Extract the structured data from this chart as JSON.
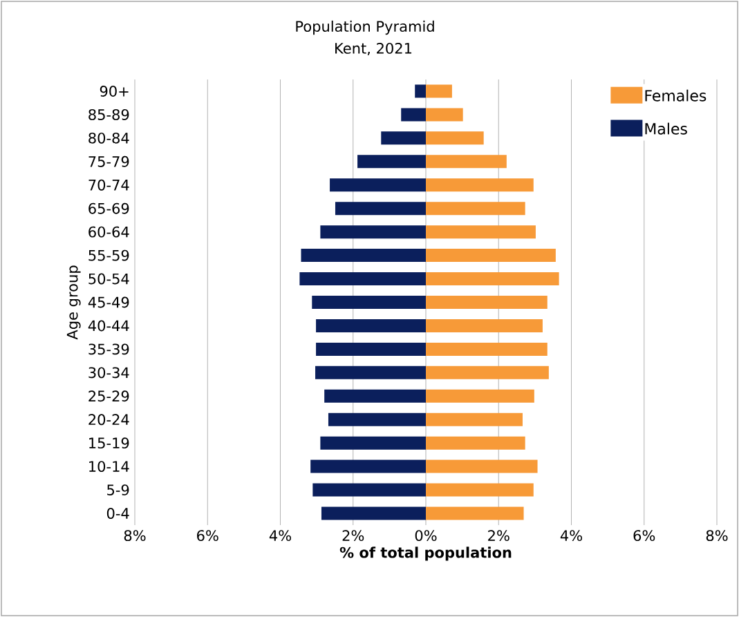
{
  "chart_data": {
    "type": "bar",
    "orientation": "horizontal",
    "title": "Population Pyramid",
    "subtitle": "Kent, 2021",
    "xlabel": "% of total population",
    "ylabel": "Age group",
    "categories": [
      "90+",
      "85-89",
      "80-84",
      "75-79",
      "70-74",
      "65-69",
      "60-64",
      "55-59",
      "50-54",
      "45-49",
      "40-44",
      "35-39",
      "30-34",
      "25-29",
      "20-24",
      "15-19",
      "10-14",
      "5-9",
      "0-4"
    ],
    "series": [
      {
        "name": "Females",
        "color": "#f79a38",
        "values": [
          0.72,
          1.02,
          1.59,
          2.22,
          2.96,
          2.73,
          3.02,
          3.57,
          3.66,
          3.34,
          3.21,
          3.34,
          3.38,
          2.98,
          2.66,
          2.73,
          3.07,
          2.96,
          2.69
        ]
      },
      {
        "name": "Males",
        "color": "#0b1f5c",
        "values": [
          -0.3,
          -0.68,
          -1.23,
          -1.88,
          -2.64,
          -2.49,
          -2.9,
          -3.43,
          -3.47,
          -3.13,
          -3.02,
          -3.02,
          -3.04,
          -2.79,
          -2.68,
          -2.9,
          -3.17,
          -3.11,
          -2.87
        ]
      }
    ],
    "xlim": [
      -8,
      8
    ],
    "xticks": [
      {
        "value": -8,
        "label": "8%"
      },
      {
        "value": -6,
        "label": "6%"
      },
      {
        "value": -4,
        "label": "4%"
      },
      {
        "value": -2,
        "label": "2%"
      },
      {
        "value": 0,
        "label": "0%"
      },
      {
        "value": 2,
        "label": "2%"
      },
      {
        "value": 4,
        "label": "4%"
      },
      {
        "value": 6,
        "label": "6%"
      },
      {
        "value": 8,
        "label": "8%"
      }
    ],
    "grid": "x",
    "legend": "top right",
    "stacked": true
  }
}
